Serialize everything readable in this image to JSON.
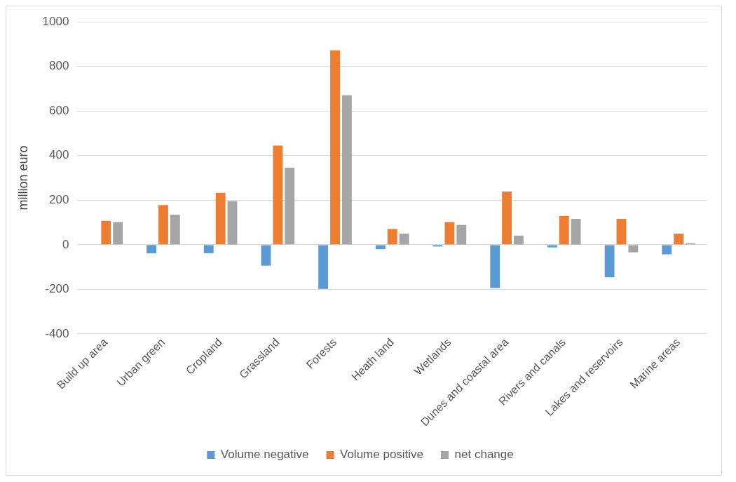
{
  "chart_data": {
    "type": "bar",
    "ylabel": "million euro",
    "categories": [
      "Build up area",
      "Urban green",
      "Cropland",
      "Grassland",
      "Forests",
      "Heath land",
      "Wetlands",
      "Dunes and coastal area",
      "Rivers and canals",
      "Lakes and reservoirs",
      "Marine areas"
    ],
    "series": [
      {
        "name": "Volume negative",
        "color": "#5b9bd5",
        "values": [
          0,
          -38,
          -38,
          -94,
          -198,
          -20,
          -8,
          -194,
          -12,
          -146,
          -43
        ]
      },
      {
        "name": "Volume positive",
        "color": "#ed7d31",
        "values": [
          107,
          178,
          233,
          445,
          872,
          71,
          102,
          239,
          129,
          116,
          50
        ]
      },
      {
        "name": "net change",
        "color": "#a5a5a5",
        "values": [
          102,
          135,
          196,
          346,
          671,
          50,
          89,
          41,
          116,
          -34,
          7
        ]
      }
    ],
    "ylim": [
      -400,
      1000
    ],
    "yticks": [
      -400,
      -200,
      0,
      200,
      400,
      600,
      800,
      1000
    ],
    "grid": "y",
    "legend": "bottom"
  }
}
